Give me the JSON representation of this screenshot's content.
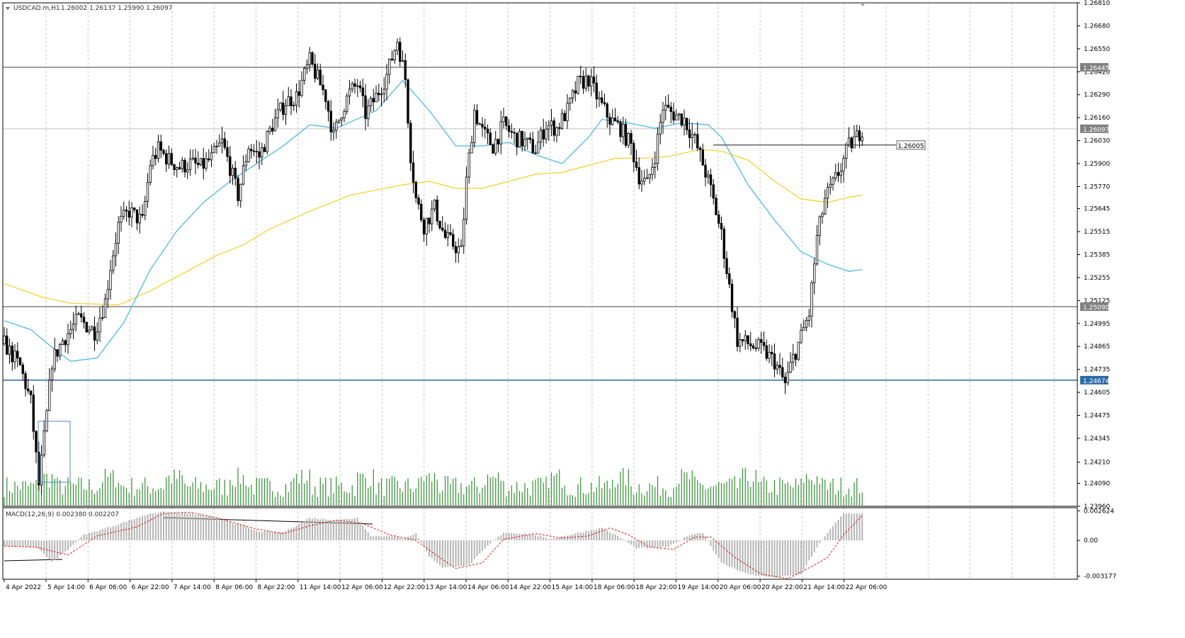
{
  "header": {
    "symbol": "USDCAD.m,H1",
    "ohlc": "1.26002 1.26137 1.25990 1.26097"
  },
  "macd_header": "MACD(12,26,9) 0.002380 0.002207",
  "colors": {
    "background": "#ffffff",
    "grid": "#c8c8c8",
    "candle": "#000000",
    "volume": "#2f8f2f",
    "ma_fast": "#3fb7e0",
    "ma_slow": "#f5d020",
    "macd_hist": "#b4b4b4",
    "macd_signal": "#e02020",
    "level_gray": "#808080",
    "level_blue": "#2a6aa8",
    "box": "#4f86c6"
  },
  "chart_data": {
    "type": "candlestick",
    "instrument": "USDCAD.m",
    "timeframe": "H1",
    "ylim": [
      1.2396,
      1.2681
    ],
    "price_ticks": [
      "1.26810",
      "1.26680",
      "1.26550",
      "1.26420",
      "1.26290",
      "1.26160",
      "1.26030",
      "1.25900",
      "1.25770",
      "1.25645",
      "1.25515",
      "1.25385",
      "1.25255",
      "1.25125",
      "1.24995",
      "1.24865",
      "1.24735",
      "1.24605",
      "1.24475",
      "1.24345",
      "1.24210",
      "1.24090",
      "1.23960"
    ],
    "price_tick_values": [
      1.2681,
      1.2668,
      1.2655,
      1.2642,
      1.2629,
      1.2616,
      1.2603,
      1.259,
      1.2577,
      1.25645,
      1.25515,
      1.25385,
      1.25255,
      1.25125,
      1.24995,
      1.24865,
      1.24735,
      1.24605,
      1.24475,
      1.24345,
      1.2421,
      1.2409,
      1.2396
    ],
    "horizontal_levels": [
      {
        "label": "1.26445",
        "value": 1.26445,
        "color": "gray"
      },
      {
        "label": "1.26097",
        "value": 1.26097,
        "color": "current"
      },
      {
        "label": "1.25090",
        "value": 1.2509,
        "color": "gray"
      },
      {
        "label": "1.24674",
        "value": 1.24674,
        "color": "blue"
      }
    ],
    "trend_line_label": "1.26005",
    "trend_line_value": 1.26005,
    "time_labels": [
      "4 Apr 2022",
      "5 Apr 14:00",
      "6 Apr 06:00",
      "6 Apr 22:00",
      "7 Apr 14:00",
      "8 Apr 06:00",
      "8 Apr 22:00",
      "11 Apr 14:00",
      "12 Apr 06:00",
      "12 Apr 22:00",
      "13 Apr 14:00",
      "14 Apr 06:00",
      "14 Apr 22:00",
      "15 Apr 14:00",
      "18 Apr 06:00",
      "18 Apr 22:00",
      "19 Apr 14:00",
      "20 Apr 06:00",
      "20 Apr 22:00",
      "21 Apr 14:00",
      "22 Apr 06:00"
    ],
    "close_path": [
      [
        0,
        1.2488
      ],
      [
        6,
        1.2475
      ],
      [
        10,
        1.2455
      ],
      [
        13,
        1.2408
      ],
      [
        16,
        1.2448
      ],
      [
        18,
        1.2478
      ],
      [
        22,
        1.249
      ],
      [
        28,
        1.2502
      ],
      [
        34,
        1.2495
      ],
      [
        38,
        1.2512
      ],
      [
        40,
        1.2532
      ],
      [
        43,
        1.2555
      ],
      [
        47,
        1.2563
      ],
      [
        52,
        1.2557
      ],
      [
        55,
        1.259
      ],
      [
        58,
        1.2598
      ],
      [
        62,
        1.2592
      ],
      [
        66,
        1.2588
      ],
      [
        70,
        1.259
      ],
      [
        74,
        1.2588
      ],
      [
        78,
        1.2593
      ],
      [
        82,
        1.2602
      ],
      [
        85,
        1.2588
      ],
      [
        88,
        1.2572
      ],
      [
        92,
        1.26
      ],
      [
        96,
        1.2594
      ],
      [
        101,
        1.2612
      ],
      [
        106,
        1.2625
      ],
      [
        110,
        1.2628
      ],
      [
        115,
        1.2648
      ],
      [
        118,
        1.2638
      ],
      [
        121,
        1.2628
      ],
      [
        124,
        1.2605
      ],
      [
        127,
        1.262
      ],
      [
        130,
        1.263
      ],
      [
        133,
        1.2635
      ],
      [
        136,
        1.2618
      ],
      [
        140,
        1.2628
      ],
      [
        144,
        1.264
      ],
      [
        148,
        1.266
      ],
      [
        151,
        1.2638
      ],
      [
        153,
        1.2595
      ],
      [
        155,
        1.257
      ],
      [
        158,
        1.2555
      ],
      [
        162,
        1.2565
      ],
      [
        166,
        1.2548
      ],
      [
        170,
        1.2543
      ],
      [
        172,
        1.254
      ],
      [
        174,
        1.258
      ],
      [
        177,
        1.262
      ],
      [
        180,
        1.2608
      ],
      [
        184,
        1.26
      ],
      [
        188,
        1.2612
      ],
      [
        192,
        1.2605
      ],
      [
        196,
        1.2602
      ],
      [
        200,
        1.2598
      ],
      [
        204,
        1.2612
      ],
      [
        208,
        1.261
      ],
      [
        212,
        1.262
      ],
      [
        216,
        1.2635
      ],
      [
        220,
        1.2638
      ],
      [
        224,
        1.2625
      ],
      [
        228,
        1.2615
      ],
      [
        232,
        1.261
      ],
      [
        236,
        1.26
      ],
      [
        239,
        1.2583
      ],
      [
        242,
        1.2578
      ],
      [
        245,
        1.2595
      ],
      [
        248,
        1.2622
      ],
      [
        252,
        1.2618
      ],
      [
        256,
        1.2615
      ],
      [
        260,
        1.2603
      ],
      [
        263,
        1.259
      ],
      [
        266,
        1.2575
      ],
      [
        270,
        1.255
      ],
      [
        273,
        1.252
      ],
      [
        276,
        1.249
      ],
      [
        280,
        1.2488
      ],
      [
        285,
        1.2485
      ],
      [
        290,
        1.2478
      ],
      [
        294,
        1.2465
      ],
      [
        297,
        1.248
      ],
      [
        300,
        1.2492
      ],
      [
        303,
        1.2505
      ],
      [
        306,
        1.2548
      ],
      [
        309,
        1.257
      ],
      [
        312,
        1.2578
      ],
      [
        315,
        1.2588
      ],
      [
        318,
        1.26
      ],
      [
        321,
        1.2605
      ],
      [
        323,
        1.261
      ]
    ],
    "ma_fast_path": [
      [
        0,
        1.2501
      ],
      [
        10,
        1.2496
      ],
      [
        18,
        1.2486
      ],
      [
        25,
        1.2478
      ],
      [
        35,
        1.248
      ],
      [
        45,
        1.25
      ],
      [
        55,
        1.253
      ],
      [
        65,
        1.2552
      ],
      [
        75,
        1.2568
      ],
      [
        85,
        1.258
      ],
      [
        95,
        1.259
      ],
      [
        105,
        1.26
      ],
      [
        115,
        1.2612
      ],
      [
        125,
        1.261
      ],
      [
        140,
        1.262
      ],
      [
        150,
        1.2637
      ],
      [
        160,
        1.262
      ],
      [
        170,
        1.26
      ],
      [
        180,
        1.26
      ],
      [
        190,
        1.2602
      ],
      [
        200,
        1.2595
      ],
      [
        210,
        1.259
      ],
      [
        220,
        1.2605
      ],
      [
        225,
        1.2615
      ],
      [
        235,
        1.2613
      ],
      [
        245,
        1.261
      ],
      [
        255,
        1.2613
      ],
      [
        265,
        1.2612
      ],
      [
        270,
        1.2605
      ],
      [
        280,
        1.2578
      ],
      [
        290,
        1.2558
      ],
      [
        300,
        1.254
      ],
      [
        310,
        1.2533
      ],
      [
        318,
        1.2529
      ],
      [
        323,
        1.253
      ]
    ],
    "ma_slow_path": [
      [
        0,
        1.2522
      ],
      [
        15,
        1.2514
      ],
      [
        25,
        1.2511
      ],
      [
        43,
        1.251
      ],
      [
        55,
        1.2518
      ],
      [
        70,
        1.253
      ],
      [
        80,
        1.2538
      ],
      [
        90,
        1.2544
      ],
      [
        100,
        1.2553
      ],
      [
        115,
        1.2563
      ],
      [
        130,
        1.2572
      ],
      [
        150,
        1.2578
      ],
      [
        160,
        1.258
      ],
      [
        170,
        1.2576
      ],
      [
        180,
        1.2576
      ],
      [
        190,
        1.258
      ],
      [
        200,
        1.2584
      ],
      [
        210,
        1.2585
      ],
      [
        220,
        1.2589
      ],
      [
        230,
        1.2593
      ],
      [
        240,
        1.2593
      ],
      [
        250,
        1.2594
      ],
      [
        262,
        1.2598
      ],
      [
        270,
        1.2597
      ],
      [
        280,
        1.2592
      ],
      [
        290,
        1.258
      ],
      [
        300,
        1.257
      ],
      [
        310,
        1.2568
      ],
      [
        318,
        1.2571
      ],
      [
        323,
        1.2572
      ]
    ],
    "macd_ticks": [
      "0.002624",
      "0.00",
      "-0.003177"
    ],
    "macd_tick_values": [
      0.002624,
      0,
      -0.003177
    ],
    "macd_ylim": [
      -0.00345,
      0.0029
    ],
    "macd_hist_path": [
      [
        0,
        -0.0005
      ],
      [
        12,
        -0.0006
      ],
      [
        18,
        -0.0019
      ],
      [
        24,
        -0.0008
      ],
      [
        30,
        0.0005
      ],
      [
        40,
        0.0012
      ],
      [
        50,
        0.002
      ],
      [
        55,
        0.0024
      ],
      [
        60,
        0.0025
      ],
      [
        70,
        0.0024
      ],
      [
        80,
        0.002
      ],
      [
        90,
        0.0013
      ],
      [
        95,
        0.0008
      ],
      [
        105,
        0.0007
      ],
      [
        115,
        0.002
      ],
      [
        125,
        0.0018
      ],
      [
        133,
        0.002
      ],
      [
        138,
        0.0004
      ],
      [
        145,
        0.0004
      ],
      [
        150,
        0.0002
      ],
      [
        155,
        0.0006
      ],
      [
        160,
        -0.0014
      ],
      [
        165,
        -0.0024
      ],
      [
        175,
        -0.0022
      ],
      [
        182,
        -0.0005
      ],
      [
        188,
        0.0007
      ],
      [
        195,
        0.0006
      ],
      [
        200,
        0.0005
      ],
      [
        205,
        0.0001
      ],
      [
        215,
        0.0006
      ],
      [
        225,
        0.0011
      ],
      [
        230,
        0.0005
      ],
      [
        238,
        -0.0007
      ],
      [
        250,
        -0.0006
      ],
      [
        258,
        0.0005
      ],
      [
        263,
        0.0007
      ],
      [
        270,
        -0.002
      ],
      [
        280,
        -0.003
      ],
      [
        290,
        -0.0033
      ],
      [
        300,
        -0.003
      ],
      [
        308,
        0.0001
      ],
      [
        316,
        0.0024
      ],
      [
        323,
        0.0024
      ]
    ],
    "macd_signal_path": [
      [
        0,
        -0.0005
      ],
      [
        12,
        -0.0006
      ],
      [
        24,
        -0.0013
      ],
      [
        35,
        0.0004
      ],
      [
        50,
        0.0012
      ],
      [
        60,
        0.0024
      ],
      [
        70,
        0.0025
      ],
      [
        80,
        0.002
      ],
      [
        95,
        0.001
      ],
      [
        105,
        0.0006
      ],
      [
        115,
        0.0013
      ],
      [
        125,
        0.0018
      ],
      [
        135,
        0.0015
      ],
      [
        145,
        0.0005
      ],
      [
        155,
        0.0
      ],
      [
        162,
        -0.0012
      ],
      [
        170,
        -0.0025
      ],
      [
        180,
        -0.002
      ],
      [
        188,
        0.0001
      ],
      [
        200,
        0.0006
      ],
      [
        210,
        0.0002
      ],
      [
        220,
        0.0004
      ],
      [
        228,
        0.0011
      ],
      [
        235,
        0.0005
      ],
      [
        243,
        -0.0006
      ],
      [
        252,
        -0.0008
      ],
      [
        260,
        0.0003
      ],
      [
        266,
        0.0003
      ],
      [
        275,
        -0.0015
      ],
      [
        285,
        -0.003
      ],
      [
        295,
        -0.0034
      ],
      [
        305,
        -0.0022
      ],
      [
        310,
        -0.0015
      ],
      [
        316,
        0.0005
      ],
      [
        323,
        0.0022
      ]
    ],
    "bars": 324
  }
}
